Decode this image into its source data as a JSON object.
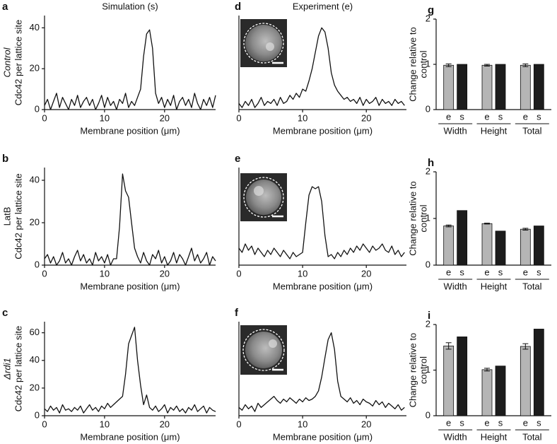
{
  "chart_data": [
    {
      "type": "line",
      "panel": "a",
      "title": "Simulation (s)",
      "row_label": "Control",
      "ylabel": "Cdc42 per lattice site",
      "xlabel": "Membrane position (μm)",
      "color": "#111111",
      "x": [
        0,
        0.5,
        1,
        1.5,
        2,
        2.5,
        3,
        3.5,
        4,
        4.5,
        5,
        5.5,
        6,
        6.5,
        7,
        7.5,
        8,
        8.5,
        9,
        9.5,
        10,
        10.5,
        11,
        11.5,
        12,
        12.5,
        13,
        13.5,
        14,
        14.5,
        15,
        15.5,
        16,
        16.5,
        17,
        17.5,
        18,
        18.5,
        19,
        19.5,
        20,
        20.5,
        21,
        21.5,
        22,
        22.5,
        23,
        23.5,
        24,
        24.5,
        25,
        25.5,
        26,
        26.5,
        27,
        27.5,
        28,
        28.5
      ],
      "values": [
        2,
        5,
        0,
        4,
        8,
        1,
        6,
        3,
        0,
        5,
        2,
        7,
        1,
        4,
        6,
        2,
        5,
        0,
        3,
        7,
        1,
        6,
        2,
        4,
        0,
        5,
        3,
        8,
        1,
        4,
        2,
        6,
        10,
        26,
        37,
        39,
        30,
        8,
        3,
        6,
        1,
        5,
        2,
        7,
        0,
        4,
        6,
        2,
        5,
        1,
        8,
        3,
        0,
        5,
        2,
        6,
        1,
        7
      ],
      "xlim": [
        0,
        28.5
      ],
      "ylim": [
        0,
        46
      ],
      "xticks": [
        0,
        10,
        20
      ],
      "yticks": [
        0,
        20,
        40
      ]
    },
    {
      "type": "line",
      "panel": "b",
      "row_label": "LatB",
      "ylabel": "Cdc42 per lattice site",
      "xlabel": "Membrane position (μm)",
      "color": "#111111",
      "x": [
        0,
        0.5,
        1,
        1.5,
        2,
        2.5,
        3,
        3.5,
        4,
        4.5,
        5,
        5.5,
        6,
        6.5,
        7,
        7.5,
        8,
        8.5,
        9,
        9.5,
        10,
        10.5,
        11,
        11.5,
        12,
        12.5,
        13,
        13.5,
        14,
        14.5,
        15,
        15.5,
        16,
        16.5,
        17,
        17.5,
        18,
        18.5,
        19,
        19.5,
        20,
        20.5,
        21,
        21.5,
        22,
        22.5,
        23,
        23.5,
        24,
        24.5,
        25,
        25.5,
        26,
        26.5,
        27,
        27.5,
        28,
        28.5
      ],
      "values": [
        3,
        5,
        1,
        4,
        0,
        2,
        6,
        1,
        3,
        0,
        4,
        7,
        2,
        5,
        1,
        3,
        0,
        6,
        2,
        4,
        1,
        5,
        0,
        3,
        3,
        18,
        43,
        35,
        32,
        20,
        8,
        4,
        1,
        6,
        2,
        0,
        5,
        3,
        7,
        1,
        4,
        0,
        2,
        6,
        1,
        5,
        3,
        0,
        4,
        8,
        2,
        5,
        1,
        3,
        6,
        0,
        4,
        2
      ],
      "xlim": [
        0,
        28.5
      ],
      "ylim": [
        0,
        46
      ],
      "xticks": [
        0,
        10,
        20
      ],
      "yticks": [
        0,
        20,
        40
      ]
    },
    {
      "type": "line",
      "panel": "c",
      "row_label": "Δrdi1",
      "ylabel": "Cdc42 per lattice site",
      "xlabel": "Membrane position (μm)",
      "color": "#111111",
      "x": [
        0,
        0.5,
        1,
        1.5,
        2,
        2.5,
        3,
        3.5,
        4,
        4.5,
        5,
        5.5,
        6,
        6.5,
        7,
        7.5,
        8,
        8.5,
        9,
        9.5,
        10,
        10.5,
        11,
        11.5,
        12,
        12.5,
        13,
        13.5,
        14,
        14.5,
        15,
        15.5,
        16,
        16.5,
        17,
        17.5,
        18,
        18.5,
        19,
        19.5,
        20,
        20.5,
        21,
        21.5,
        22,
        22.5,
        23,
        23.5,
        24,
        24.5,
        25,
        25.5,
        26,
        26.5,
        27,
        27.5,
        28,
        28.5
      ],
      "values": [
        5,
        3,
        7,
        4,
        6,
        2,
        8,
        4,
        5,
        3,
        6,
        4,
        7,
        2,
        5,
        8,
        4,
        6,
        3,
        7,
        5,
        9,
        6,
        8,
        10,
        12,
        14,
        30,
        52,
        58,
        64,
        40,
        22,
        8,
        15,
        6,
        4,
        7,
        3,
        5,
        8,
        2,
        6,
        4,
        7,
        3,
        5,
        2,
        6,
        4,
        8,
        3,
        5,
        7,
        2,
        6,
        4,
        3
      ],
      "xlim": [
        0,
        28.5
      ],
      "ylim": [
        0,
        68
      ],
      "xticks": [
        0,
        10,
        20
      ],
      "yticks": [
        0,
        20,
        40,
        60
      ]
    },
    {
      "type": "line",
      "panel": "d",
      "title": "Experiment (e)",
      "xlabel": "Membrane position (μm)",
      "color": "#111111",
      "x": [
        0,
        0.5,
        1,
        1.5,
        2,
        2.5,
        3,
        3.5,
        4,
        4.5,
        5,
        5.5,
        6,
        6.5,
        7,
        7.5,
        8,
        8.5,
        9,
        9.5,
        10,
        10.5,
        11,
        11.5,
        12,
        12.5,
        13,
        13.5,
        14,
        14.5,
        15,
        15.5,
        16,
        16.5,
        17,
        17.5,
        18,
        18.5,
        19,
        19.5,
        20,
        20.5,
        21,
        21.5,
        22,
        22.5,
        23,
        23.5,
        24,
        24.5,
        25,
        25.5,
        26
      ],
      "values": [
        3,
        1,
        4,
        2,
        5,
        1,
        3,
        6,
        2,
        4,
        3,
        5,
        2,
        6,
        3,
        4,
        7,
        5,
        8,
        6,
        10,
        9,
        14,
        20,
        28,
        36,
        40,
        38,
        30,
        18,
        12,
        9,
        7,
        5,
        6,
        4,
        5,
        3,
        6,
        2,
        5,
        3,
        4,
        6,
        2,
        5,
        3,
        4,
        2,
        5,
        3,
        4,
        2
      ],
      "xlim": [
        0,
        26.3
      ],
      "ylim": [
        0,
        46
      ],
      "xticks": [
        0,
        10,
        20
      ]
    },
    {
      "type": "line",
      "panel": "e",
      "xlabel": "Membrane position (μm)",
      "color": "#111111",
      "x": [
        0,
        0.5,
        1,
        1.5,
        2,
        2.5,
        3,
        3.5,
        4,
        4.5,
        5,
        5.5,
        6,
        6.5,
        7,
        7.5,
        8,
        8.5,
        9,
        9.5,
        10,
        10.5,
        11,
        11.5,
        12,
        12.5,
        13,
        13.5,
        14,
        14.5,
        15,
        15.5,
        16,
        16.5,
        17,
        17.5,
        18,
        18.5,
        19,
        19.5,
        20,
        20.5,
        21,
        21.5,
        22,
        22.5,
        23,
        23.5,
        24,
        24.5,
        25,
        25.5,
        26
      ],
      "values": [
        8,
        6,
        10,
        7,
        9,
        5,
        8,
        6,
        4,
        7,
        5,
        8,
        6,
        4,
        7,
        5,
        3,
        6,
        4,
        5,
        6,
        20,
        33,
        37,
        36,
        37,
        30,
        14,
        4,
        5,
        3,
        6,
        4,
        7,
        5,
        8,
        6,
        9,
        7,
        10,
        8,
        6,
        9,
        7,
        8,
        10,
        7,
        6,
        9,
        5,
        7,
        4,
        6
      ],
      "xlim": [
        0,
        26.3
      ],
      "ylim": [
        0,
        46
      ],
      "xticks": [
        0,
        10,
        20
      ]
    },
    {
      "type": "line",
      "panel": "f",
      "xlabel": "Membrane position (μm)",
      "color": "#111111",
      "x": [
        0,
        0.5,
        1,
        1.5,
        2,
        2.5,
        3,
        3.5,
        4,
        4.5,
        5,
        5.5,
        6,
        6.5,
        7,
        7.5,
        8,
        8.5,
        9,
        9.5,
        10,
        10.5,
        11,
        11.5,
        12,
        12.5,
        13,
        13.5,
        14,
        14.5,
        15,
        15.5,
        16,
        16.5,
        17,
        17.5,
        18,
        18.5,
        19,
        19.5,
        20,
        20.5,
        21,
        21.5,
        22,
        22.5,
        23,
        23.5,
        24,
        24.5,
        25,
        25.5,
        26
      ],
      "values": [
        6,
        4,
        8,
        5,
        7,
        3,
        9,
        6,
        8,
        10,
        12,
        14,
        11,
        9,
        12,
        10,
        13,
        11,
        9,
        12,
        10,
        13,
        11,
        12,
        14,
        18,
        28,
        42,
        55,
        60,
        48,
        25,
        14,
        12,
        10,
        13,
        9,
        11,
        8,
        12,
        10,
        9,
        7,
        11,
        8,
        10,
        6,
        9,
        7,
        5,
        8,
        4,
        6
      ],
      "xlim": [
        0,
        26.3
      ],
      "ylim": [
        0,
        68
      ],
      "xticks": [
        0,
        10,
        20
      ]
    },
    {
      "type": "bar",
      "panel": "g",
      "ylabel": [
        "Change relative to",
        "control"
      ],
      "groups": [
        "Width",
        "Height",
        "Total"
      ],
      "series": [
        {
          "name": "e",
          "color": "#b5b5b5",
          "values": [
            0.98,
            0.98,
            0.98
          ],
          "errors": [
            0.03,
            0.02,
            0.03
          ]
        },
        {
          "name": "s",
          "color": "#1c1c1c",
          "values": [
            1,
            1,
            1
          ]
        }
      ],
      "ylim": [
        0,
        2
      ],
      "yticks": [
        0,
        1,
        2
      ]
    },
    {
      "type": "bar",
      "panel": "h",
      "ylabel": [
        "Change relative to",
        "control"
      ],
      "groups": [
        "Width",
        "Height",
        "Total"
      ],
      "series": [
        {
          "name": "e",
          "color": "#b5b5b5",
          "values": [
            0.84,
            0.89,
            0.77
          ],
          "errors": [
            0.02,
            0.01,
            0.02
          ]
        },
        {
          "name": "s",
          "color": "#1c1c1c",
          "values": [
            1.17,
            0.73,
            0.84
          ]
        }
      ],
      "ylim": [
        0,
        2
      ],
      "yticks": [
        0,
        1,
        2
      ]
    },
    {
      "type": "bar",
      "panel": "i",
      "ylabel": [
        "Change relative to",
        "control"
      ],
      "groups": [
        "Width",
        "Height",
        "Total"
      ],
      "series": [
        {
          "name": "e",
          "color": "#b5b5b5",
          "values": [
            1.53,
            1.01,
            1.52
          ],
          "errors": [
            0.07,
            0.03,
            0.06
          ]
        },
        {
          "name": "s",
          "color": "#1c1c1c",
          "values": [
            1.73,
            1.09,
            1.9
          ]
        }
      ],
      "ylim": [
        0,
        2
      ],
      "yticks": [
        0,
        1,
        2
      ]
    }
  ]
}
